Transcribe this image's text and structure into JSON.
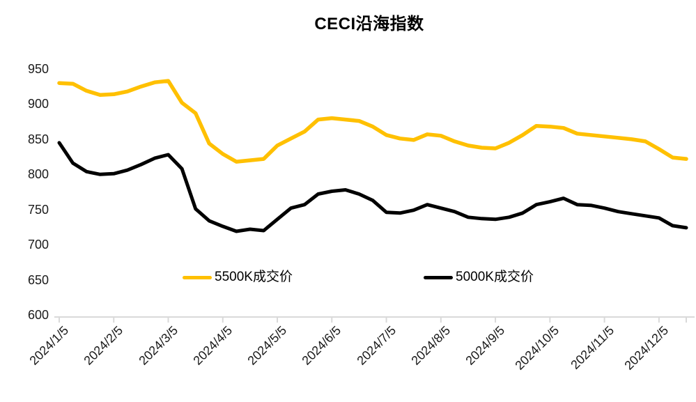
{
  "title": "CECI沿海指数",
  "colors": {
    "series_5500k": "#FFC000",
    "series_5000k": "#000000",
    "axis_line": "#D9D9D9",
    "tick_text": "#1a1a1a",
    "background": "#ffffff"
  },
  "legend": [
    {
      "label": "5500K成交价",
      "color": "#FFC000"
    },
    {
      "label": "5000K成交价",
      "color": "#000000"
    }
  ],
  "y_axis": {
    "tick_labels": [
      "950",
      "900",
      "850",
      "800",
      "750",
      "700",
      "650",
      "600"
    ],
    "min": 600,
    "max": 950
  },
  "x_axis": {
    "tick_labels": [
      "2024/1/5",
      "2024/2/5",
      "2024/3/5",
      "2024/4/5",
      "2024/5/5",
      "2024/6/5",
      "2024/7/5",
      "2024/8/5",
      "2024/9/5",
      "2024/10/5",
      "2024/11/5",
      "2024/12/5"
    ],
    "label_point_indices": [
      0,
      4,
      8,
      12,
      16,
      20,
      24,
      28,
      32,
      36,
      40,
      44
    ]
  },
  "chart_data": {
    "type": "line",
    "title": "CECI沿海指数",
    "x_tick_labels": [
      "2024/1/5",
      "2024/2/5",
      "2024/3/5",
      "2024/4/5",
      "2024/5/5",
      "2024/6/5",
      "2024/7/5",
      "2024/8/5",
      "2024/9/5",
      "2024/10/5",
      "2024/11/5",
      "2024/12/5"
    ],
    "x_label_point_indices": [
      0,
      4,
      8,
      12,
      16,
      20,
      24,
      28,
      32,
      36,
      40,
      44
    ],
    "points_per_series": 47,
    "ylim": [
      600,
      950
    ],
    "grid": false,
    "legend_position": "inside-bottom",
    "series": [
      {
        "name": "5500K成交价",
        "color": "#FFC000",
        "stroke_width": 5.5,
        "values": [
          930,
          929,
          919,
          913,
          914,
          918,
          925,
          931,
          933,
          902,
          887,
          844,
          829,
          818,
          820,
          822,
          841,
          851,
          861,
          878,
          880,
          878,
          876,
          868,
          856,
          851,
          849,
          857,
          855,
          847,
          841,
          838,
          837,
          845,
          856,
          869,
          868,
          866,
          858,
          856,
          854,
          852,
          850,
          847,
          836,
          824,
          822
        ]
      },
      {
        "name": "5000K成交价",
        "color": "#000000",
        "stroke_width": 5,
        "values": [
          845,
          816,
          804,
          800,
          801,
          806,
          814,
          823,
          828,
          808,
          751,
          734,
          726,
          719,
          722,
          720,
          736,
          752,
          757,
          772,
          776,
          778,
          772,
          763,
          746,
          745,
          749,
          757,
          752,
          747,
          739,
          737,
          736,
          739,
          745,
          757,
          761,
          766,
          757,
          756,
          752,
          747,
          744,
          741,
          738,
          727,
          724
        ]
      }
    ]
  }
}
